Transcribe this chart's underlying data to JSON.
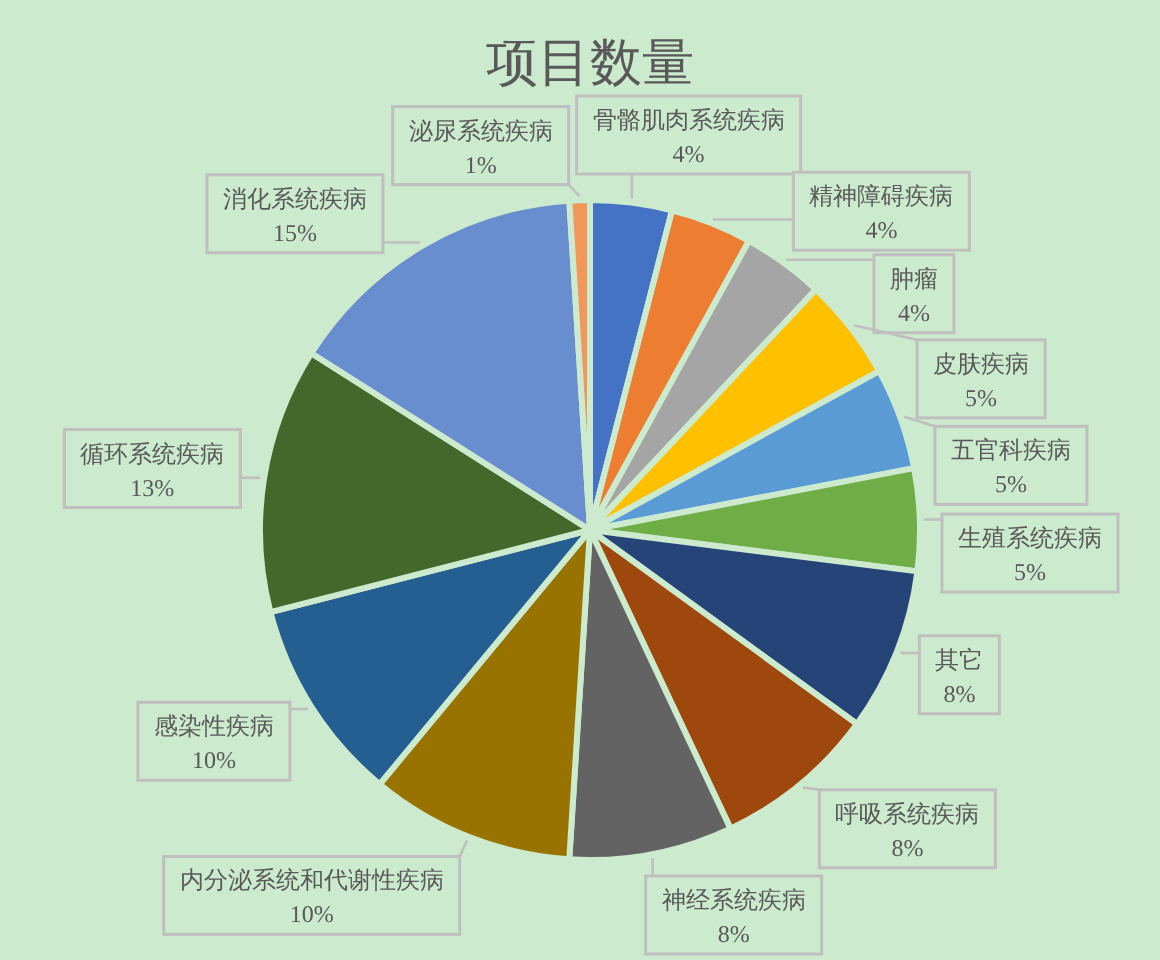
{
  "chart_data": {
    "type": "pie",
    "title": "项目数量",
    "categories": [
      "骨骼肌肉系统疾病",
      "精神障碍疾病",
      "肿瘤",
      "皮肤疾病",
      "五官科疾病",
      "生殖系统疾病",
      "其它",
      "呼吸系统疾病",
      "神经系统疾病",
      "内分泌系统和代谢性疾病",
      "感染性疾病",
      "循环系统疾病",
      "消化系统疾病",
      "泌尿系统疾病"
    ],
    "values": [
      4,
      4,
      4,
      5,
      5,
      5,
      8,
      8,
      8,
      10,
      10,
      13,
      15,
      1
    ],
    "value_labels": [
      "4%",
      "4%",
      "4%",
      "5%",
      "5%",
      "5%",
      "8%",
      "8%",
      "8%",
      "10%",
      "10%",
      "13%",
      "15%",
      "1%"
    ],
    "colors": [
      "#4472c4",
      "#ed7d31",
      "#a5a5a5",
      "#ffc000",
      "#5b9bd5",
      "#70ad47",
      "#264478",
      "#9e480e",
      "#636363",
      "#997300",
      "#255e91",
      "#43682b",
      "#698ed0",
      "#f1975a"
    ]
  }
}
